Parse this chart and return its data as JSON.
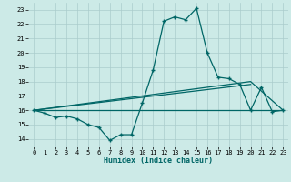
{
  "xlabel": "Humidex (Indice chaleur)",
  "xlim": [
    -0.5,
    23.5
  ],
  "ylim": [
    13.5,
    23.5
  ],
  "xticks": [
    0,
    1,
    2,
    3,
    4,
    5,
    6,
    7,
    8,
    9,
    10,
    11,
    12,
    13,
    14,
    15,
    16,
    17,
    18,
    19,
    20,
    21,
    22,
    23
  ],
  "yticks": [
    14,
    15,
    16,
    17,
    18,
    19,
    20,
    21,
    22,
    23
  ],
  "bg_color": "#cceae7",
  "grid_color": "#aacccc",
  "line_color": "#006666",
  "line1_x": [
    0,
    1,
    2,
    3,
    4,
    5,
    6,
    7,
    8,
    9,
    10,
    11,
    12,
    13,
    14,
    15,
    16,
    17,
    18,
    19,
    20,
    21,
    22,
    23
  ],
  "line1_y": [
    16.0,
    15.8,
    15.5,
    15.6,
    15.4,
    15.0,
    14.8,
    13.9,
    14.3,
    14.3,
    16.5,
    18.8,
    22.2,
    22.5,
    22.3,
    23.1,
    20.0,
    18.3,
    18.2,
    17.8,
    16.0,
    17.6,
    15.9,
    16.0
  ],
  "line2_x": [
    0,
    23
  ],
  "line2_y": [
    16.0,
    16.0
  ],
  "line3_x": [
    0,
    20,
    23
  ],
  "line3_y": [
    16.0,
    18.0,
    16.0
  ],
  "line4_x": [
    0,
    20
  ],
  "line4_y": [
    16.0,
    17.8
  ],
  "markersize": 2.5,
  "linewidth": 0.9
}
